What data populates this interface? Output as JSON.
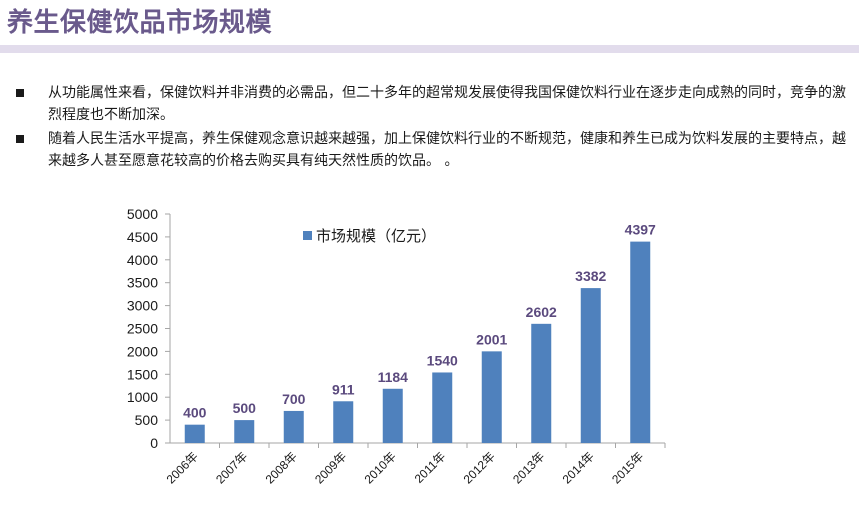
{
  "slide": {
    "title": "养生保健饮品市场规模"
  },
  "bullets": [
    "从功能属性来看，保健饮料并非消费的必需品，但二十多年的超常规发展使得我国保健饮料行业在逐步走向成熟的同时，竞争的激烈程度也不断加深。",
    "随着人民生活水平提高，养生保健观念意识越来越强，加上保健饮料行业的不断规范，健康和养生已成为饮料发展的主要特点，越来越多人甚至愿意花较高的价格去购买具有纯天然性质的饮品。 。"
  ],
  "colors": {
    "title": "#6a5a8c",
    "underline": "#e2dcec",
    "bar": "#4f81bd",
    "data_label": "#5b4a7e"
  },
  "chart_data": {
    "type": "bar",
    "categories": [
      "2006年",
      "2007年",
      "2008年",
      "2009年",
      "2010年",
      "2011年",
      "2012年",
      "2013年",
      "2014年",
      "2015年"
    ],
    "series": [
      {
        "name": "市场规模（亿元）",
        "values": [
          400,
          500,
          700,
          911,
          1184,
          1540,
          2001,
          2602,
          3382,
          4397
        ]
      }
    ],
    "yticks": [
      "0",
      "500",
      "1000",
      "1500",
      "2000",
      "2500",
      "3000",
      "3500",
      "4000",
      "4500",
      "5000"
    ],
    "ylim": [
      0,
      5000
    ],
    "title": "",
    "xlabel": "",
    "ylabel": "",
    "legend_position": "top-center",
    "grid": false
  }
}
